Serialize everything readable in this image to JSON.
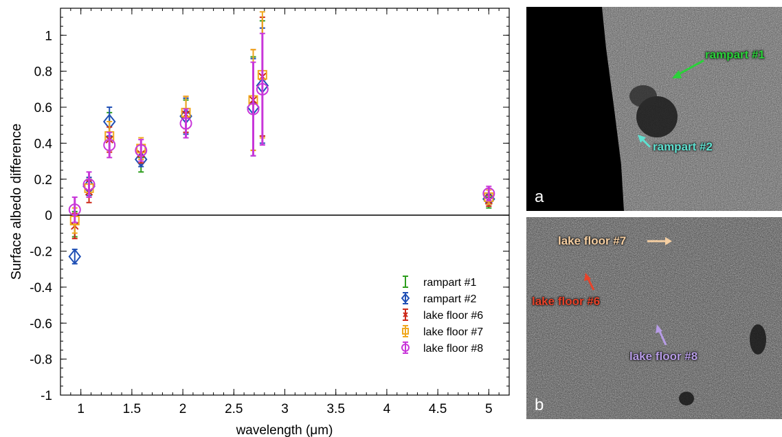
{
  "chart_data": {
    "type": "scatter",
    "xlabel": "wavelength (μm)",
    "ylabel": "Surface albedo difference",
    "xlim": [
      0.8,
      5.2
    ],
    "ylim": [
      -1.0,
      1.15
    ],
    "xticks": [
      1,
      1.5,
      2,
      2.5,
      3,
      3.5,
      4,
      4.5,
      5
    ],
    "xtick_labels": [
      "1",
      "1.5",
      "2",
      "2.5",
      "3",
      "3.5",
      "4",
      "4.5",
      "5"
    ],
    "yticks": [
      -1,
      -0.8,
      -0.6,
      -0.4,
      -0.2,
      0,
      0.2,
      0.4,
      0.6,
      0.8,
      1
    ],
    "ytick_labels": [
      "-1",
      "-0.8",
      "-0.6",
      "-0.4",
      "-0.2",
      "0",
      "0.2",
      "0.4",
      "0.6",
      "0.8",
      "1"
    ],
    "zero_line": 0,
    "grid": false,
    "legend_position": "bottom-right",
    "series": [
      {
        "name": "rampart #1",
        "marker": "none",
        "color": "#2e9e1e",
        "x": [
          0.94,
          1.08,
          1.28,
          1.59,
          2.03,
          2.69,
          2.78,
          5.0
        ],
        "y": [
          -0.05,
          0.15,
          0.5,
          0.28,
          0.55,
          0.62,
          0.76,
          0.07
        ],
        "err": [
          0.07,
          0.05,
          0.07,
          0.04,
          0.09,
          0.26,
          0.32,
          0.03
        ]
      },
      {
        "name": "rampart #2",
        "marker": "diamond",
        "color": "#1f4fb5",
        "x": [
          0.94,
          1.08,
          1.28,
          1.59,
          2.03,
          2.69,
          2.78,
          5.0
        ],
        "y": [
          -0.23,
          0.16,
          0.52,
          0.31,
          0.55,
          0.6,
          0.72,
          0.09
        ],
        "err": [
          0.04,
          0.05,
          0.08,
          0.04,
          0.1,
          0.27,
          0.32,
          0.03
        ]
      },
      {
        "name": "lake floor #6",
        "marker": "x",
        "color": "#cc2a1a",
        "x": [
          0.94,
          1.08,
          1.28,
          1.59,
          2.03,
          2.69,
          2.78,
          5.0
        ],
        "y": [
          -0.06,
          0.13,
          0.42,
          0.34,
          0.56,
          0.64,
          0.77,
          0.08
        ],
        "err": [
          0.07,
          0.06,
          0.07,
          0.05,
          0.1,
          0.28,
          0.33,
          0.03
        ]
      },
      {
        "name": "lake floor #7",
        "marker": "square",
        "color": "#f0a81e",
        "x": [
          0.94,
          1.08,
          1.28,
          1.59,
          2.03,
          2.69,
          2.78,
          5.0
        ],
        "y": [
          -0.03,
          0.15,
          0.44,
          0.37,
          0.57,
          0.64,
          0.78,
          0.1
        ],
        "err": [
          0.07,
          0.05,
          0.08,
          0.06,
          0.09,
          0.28,
          0.35,
          0.04
        ]
      },
      {
        "name": "lake floor #8",
        "marker": "circle",
        "color": "#c836d9",
        "x": [
          0.94,
          1.08,
          1.28,
          1.59,
          2.03,
          2.69,
          2.78,
          5.0
        ],
        "y": [
          0.03,
          0.17,
          0.39,
          0.36,
          0.51,
          0.59,
          0.7,
          0.12
        ],
        "err": [
          0.07,
          0.07,
          0.07,
          0.06,
          0.08,
          0.26,
          0.31,
          0.04
        ]
      }
    ]
  },
  "images": {
    "panel_a": {
      "letter": "a",
      "annotations": [
        {
          "label": "rampart #1",
          "color": "#2bd13a"
        },
        {
          "label": "rampart #2",
          "color": "#5fe0d0"
        }
      ]
    },
    "panel_b": {
      "letter": "b",
      "annotations": [
        {
          "label": "lake floor #7",
          "color": "#f6cfa2"
        },
        {
          "label": "lake floor #6",
          "color": "#e8432a"
        },
        {
          "label": "lake floor #8",
          "color": "#b79ce6"
        }
      ]
    }
  }
}
